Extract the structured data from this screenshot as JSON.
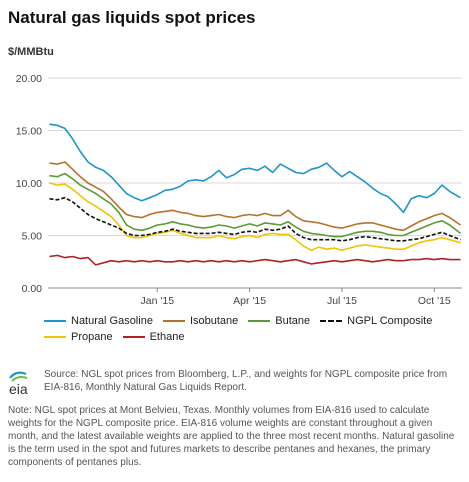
{
  "title": "Natural gas liquids spot prices",
  "unit": "$/MMBtu",
  "source_text": "Source: NGL spot prices from Bloomberg, L.P., and weights for NGPL composite price from EIA-816, Monthly Natural Gas Liquids Report.",
  "note_text": "Note: NGL spot prices at Mont Belvieu, Texas. Monthly volumes from EIA-816 used to calculate weights for the NGPL composite price. EIA-816 volume weights are constant throughout a given month, and the latest available weights are applied to the three most recent months. Natural gasoline is the term used in the spot and futures markets to describe pentanes and hexanes, the primary components of pentanes plus.",
  "logo_text": "eia",
  "chart_data": {
    "type": "line",
    "ylim": [
      0,
      20
    ],
    "y_ticks": [
      "0.00",
      "5.00",
      "10.00",
      "15.00",
      "20.00"
    ],
    "y_tick_values": [
      0,
      5,
      10,
      15,
      20
    ],
    "x_tick_labels": [
      "Jan '15",
      "Apr '15",
      "Jul '15",
      "Oct '15"
    ],
    "x_tick_positions": [
      1,
      4,
      7,
      10
    ],
    "xlim": [
      -2.55,
      10.9
    ],
    "grid": true,
    "legend_placement": "bottom",
    "x": [
      -2.5,
      -2.25,
      -2,
      -1.75,
      -1.5,
      -1.25,
      -1,
      -0.75,
      -0.5,
      -0.25,
      0,
      0.25,
      0.5,
      0.75,
      1,
      1.25,
      1.5,
      1.75,
      2,
      2.25,
      2.5,
      2.75,
      3,
      3.25,
      3.5,
      3.75,
      4,
      4.25,
      4.5,
      4.75,
      5,
      5.25,
      5.5,
      5.75,
      6,
      6.25,
      6.5,
      6.75,
      7,
      7.25,
      7.5,
      7.75,
      8,
      8.25,
      8.5,
      8.75,
      9,
      9.25,
      9.5,
      9.75,
      10,
      10.25,
      10.5,
      10.85
    ],
    "series": [
      {
        "name": "Natural Gasoline",
        "color": "#1f95cf",
        "dashed": false,
        "values": [
          15.6,
          15.5,
          15.2,
          14.2,
          13.0,
          12.0,
          11.5,
          11.2,
          10.6,
          9.8,
          9.0,
          8.6,
          8.3,
          8.6,
          8.9,
          9.3,
          9.4,
          9.7,
          10.2,
          10.3,
          10.2,
          10.6,
          11.2,
          10.5,
          10.8,
          11.3,
          11.4,
          11.2,
          11.6,
          11.0,
          11.8,
          11.4,
          11.0,
          10.9,
          11.3,
          11.5,
          11.9,
          11.2,
          10.6,
          11.1,
          10.6,
          10.1,
          9.5,
          9.0,
          8.7,
          8.0,
          7.2,
          8.5,
          8.8,
          8.6,
          9.0,
          9.8,
          9.2,
          8.6
        ]
      },
      {
        "name": "Isobutane",
        "color": "#b8712a",
        "dashed": false,
        "values": [
          11.9,
          11.8,
          12.0,
          11.3,
          10.6,
          10.0,
          9.6,
          9.2,
          8.5,
          7.7,
          7.0,
          6.8,
          6.7,
          7.0,
          7.2,
          7.3,
          7.4,
          7.2,
          7.1,
          6.9,
          6.8,
          6.9,
          7.0,
          6.8,
          6.7,
          6.9,
          7.0,
          6.9,
          7.1,
          6.9,
          6.9,
          7.4,
          6.8,
          6.4,
          6.3,
          6.2,
          6.0,
          5.8,
          5.7,
          5.9,
          6.1,
          6.2,
          6.2,
          6.0,
          5.8,
          5.6,
          5.5,
          5.9,
          6.3,
          6.6,
          6.9,
          7.1,
          6.7,
          6.0
        ]
      },
      {
        "name": "Butane",
        "color": "#5b9a35",
        "dashed": false,
        "values": [
          10.7,
          10.6,
          10.9,
          10.4,
          9.8,
          9.4,
          9.0,
          8.5,
          8.0,
          7.2,
          6.0,
          5.6,
          5.5,
          5.7,
          6.0,
          6.1,
          6.3,
          6.1,
          6.0,
          5.8,
          5.7,
          5.8,
          6.0,
          5.9,
          5.7,
          5.9,
          6.1,
          5.9,
          6.2,
          6.1,
          6.0,
          6.3,
          5.8,
          5.4,
          5.2,
          5.1,
          5.0,
          4.9,
          4.9,
          5.1,
          5.3,
          5.4,
          5.4,
          5.3,
          5.1,
          5.0,
          5.0,
          5.3,
          5.6,
          5.9,
          6.2,
          6.4,
          6.0,
          5.2
        ]
      },
      {
        "name": "NGPL Composite",
        "color": "#111111",
        "dashed": true,
        "values": [
          8.5,
          8.4,
          8.6,
          8.2,
          7.6,
          7.0,
          6.6,
          6.3,
          6.0,
          5.7,
          5.2,
          5.0,
          5.0,
          5.1,
          5.3,
          5.4,
          5.6,
          5.4,
          5.3,
          5.2,
          5.2,
          5.2,
          5.3,
          5.2,
          5.1,
          5.3,
          5.4,
          5.3,
          5.6,
          5.5,
          5.6,
          5.9,
          5.2,
          4.8,
          4.6,
          4.6,
          4.6,
          4.6,
          4.5,
          4.6,
          4.8,
          4.9,
          4.8,
          4.7,
          4.6,
          4.5,
          4.5,
          4.6,
          4.7,
          4.9,
          5.1,
          5.3,
          5.0,
          4.6
        ]
      },
      {
        "name": "Propane",
        "color": "#f2c400",
        "dashed": false,
        "values": [
          10.0,
          9.8,
          9.9,
          9.4,
          8.8,
          8.2,
          7.8,
          7.3,
          6.8,
          6.0,
          5.0,
          4.8,
          4.8,
          5.0,
          5.2,
          5.3,
          5.5,
          5.2,
          5.0,
          4.8,
          4.8,
          4.8,
          5.0,
          4.8,
          4.7,
          4.9,
          5.0,
          4.8,
          5.1,
          5.2,
          5.1,
          5.1,
          4.6,
          4.0,
          3.6,
          3.9,
          3.7,
          3.8,
          3.6,
          3.8,
          4.0,
          4.1,
          4.0,
          3.9,
          3.8,
          3.7,
          3.7,
          4.0,
          4.3,
          4.5,
          4.6,
          4.8,
          4.6,
          4.3
        ]
      },
      {
        "name": "Ethane",
        "color": "#b22222",
        "dashed": false,
        "values": [
          3.0,
          3.1,
          2.9,
          3.0,
          2.8,
          2.9,
          2.2,
          2.4,
          2.6,
          2.5,
          2.6,
          2.5,
          2.6,
          2.5,
          2.6,
          2.5,
          2.5,
          2.6,
          2.5,
          2.6,
          2.5,
          2.6,
          2.5,
          2.6,
          2.5,
          2.6,
          2.5,
          2.6,
          2.7,
          2.6,
          2.5,
          2.6,
          2.7,
          2.5,
          2.3,
          2.4,
          2.5,
          2.6,
          2.5,
          2.6,
          2.7,
          2.6,
          2.5,
          2.6,
          2.7,
          2.6,
          2.6,
          2.7,
          2.7,
          2.8,
          2.7,
          2.8,
          2.7,
          2.7
        ]
      }
    ]
  }
}
